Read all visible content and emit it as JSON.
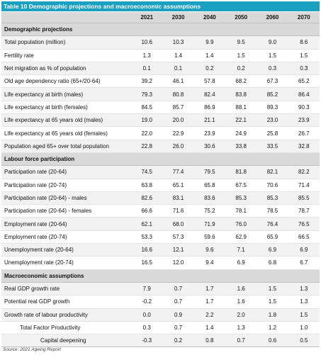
{
  "title": "Table 10 Demographic projections and macroeconomic assumptions",
  "years": [
    "2021",
    "2030",
    "2040",
    "2050",
    "2060",
    "2070"
  ],
  "sections": [
    {
      "heading": "Demographic projections",
      "rows": [
        {
          "label": "Total population (million)",
          "values": [
            "10.6",
            "10.3",
            "9.9",
            "9.5",
            "9.0",
            "8.6"
          ],
          "indent": 0
        },
        {
          "label": "Fertility rate",
          "values": [
            "1.3",
            "1.4",
            "1.4",
            "1.5",
            "1.5",
            "1.5"
          ],
          "indent": 0
        },
        {
          "label": "Net migration as % of population",
          "values": [
            "0.1",
            "0.1",
            "0.2",
            "0.2",
            "0.3",
            "0.3"
          ],
          "indent": 0
        },
        {
          "label": "Old age dependency ratio (65+/20-64)",
          "values": [
            "39.2",
            "46.1",
            "57.8",
            "68.2",
            "67.3",
            "65.2"
          ],
          "indent": 0
        },
        {
          "label": "Life expectancy at birth (males)",
          "values": [
            "79.3",
            "80.8",
            "82.4",
            "83.8",
            "85.2",
            "86.4"
          ],
          "indent": 0
        },
        {
          "label": "Life expectancy at birth (females)",
          "values": [
            "84.5",
            "85.7",
            "86.9",
            "88.1",
            "89.3",
            "90.3"
          ],
          "indent": 0
        },
        {
          "label": "Life expectancy at 65 years old (males)",
          "values": [
            "19.0",
            "20.0",
            "21.1",
            "22.1",
            "23.0",
            "23.9"
          ],
          "indent": 0
        },
        {
          "label": "Life expectancy at 65 years old (females)",
          "values": [
            "22.0",
            "22.9",
            "23.9",
            "24.9",
            "25.8",
            "26.7"
          ],
          "indent": 0
        },
        {
          "label": "Population aged 65+ over total population",
          "values": [
            "22.8",
            "26.0",
            "30.6",
            "33.8",
            "33.5",
            "32.8"
          ],
          "indent": 0
        }
      ]
    },
    {
      "heading": "Labour force participation",
      "rows": [
        {
          "label": "Participation rate (20-64)",
          "values": [
            "74.5",
            "77.4",
            "79.5",
            "81.8",
            "82.1",
            "82.2"
          ],
          "indent": 0
        },
        {
          "label": "Participation rate (20-74)",
          "values": [
            "63.8",
            "65.1",
            "65.8",
            "67.5",
            "70.6",
            "71.4"
          ],
          "indent": 0
        },
        {
          "label": "Participation rate (20-64) - males",
          "values": [
            "82.6",
            "83.1",
            "83.6",
            "85.3",
            "85.3",
            "85.5"
          ],
          "indent": 0
        },
        {
          "label": "Participation rate (20-64) - females",
          "values": [
            "66.6",
            "71.6",
            "75.2",
            "78.1",
            "78.5",
            "78.7"
          ],
          "indent": 0
        },
        {
          "label": "Employment rate (20-64)",
          "values": [
            "62.1",
            "68.0",
            "71.9",
            "76.0",
            "76.4",
            "76.5"
          ],
          "indent": 0
        },
        {
          "label": "Employment rate (20-74)",
          "values": [
            "53.3",
            "57.3",
            "59.6",
            "62.9",
            "65.9",
            "66.5"
          ],
          "indent": 0
        },
        {
          "label": "Unemployment rate (20-64)",
          "values": [
            "16.6",
            "12.1",
            "9.6",
            "7.1",
            "6.9",
            "6.9"
          ],
          "indent": 0
        },
        {
          "label": "Unemployment rate (20-74)",
          "values": [
            "16.5",
            "12.0",
            "9.4",
            "6.9",
            "6.8",
            "6.7"
          ],
          "indent": 0
        }
      ]
    },
    {
      "heading": "Macroeconomic assumptions",
      "rows": [
        {
          "label": "Real GDP growth rate",
          "values": [
            "7.9",
            "0.7",
            "1.7",
            "1.6",
            "1.5",
            "1.3"
          ],
          "indent": 0
        },
        {
          "label": "Potential real GDP growth",
          "values": [
            "-0.2",
            "0.7",
            "1.7",
            "1.6",
            "1.5",
            "1.3"
          ],
          "indent": 0
        },
        {
          "label": "Growth rate of labour productivity",
          "values": [
            "0.0",
            "0.9",
            "2.2",
            "2.0",
            "1.8",
            "1.5"
          ],
          "indent": 0
        },
        {
          "label": "Total Factor Productivity",
          "values": [
            "0.3",
            "0.7",
            "1.4",
            "1.3",
            "1.2",
            "1.0"
          ],
          "indent": 1
        },
        {
          "label": "Capital deepening",
          "values": [
            "-0.3",
            "0.2",
            "0.8",
            "0.7",
            "0.6",
            "0.5"
          ],
          "indent": 2
        }
      ]
    }
  ],
  "source": "Source: 2021 Ageing Report"
}
